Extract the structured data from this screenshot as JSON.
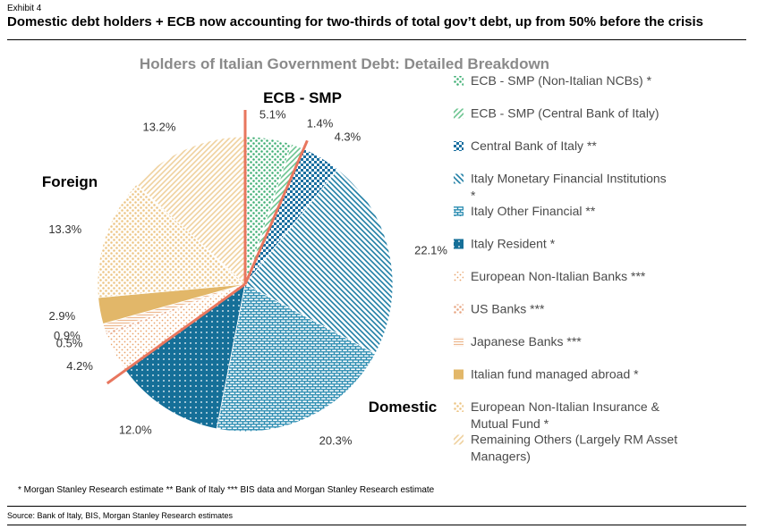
{
  "exhibit": "Exhibit 4",
  "headline": "Domestic debt holders + ECB now accounting for two-thirds of total gov’t debt, up from 50% before the crisis",
  "notes": "* Morgan Stanley Research estimate  ** Bank of Italy  *** BIS data and Morgan Stanley Research estimate",
  "source": "Source: Bank of Italy, BIS, Morgan Stanley Research estimates",
  "chart_data": {
    "type": "pie",
    "title": "Holders of Italian Government Debt: Detailed Breakdown",
    "groups": [
      {
        "label": "ECB - SMP",
        "color": "#1f9a55"
      },
      {
        "label": "Foreign",
        "color": "#e8765e"
      },
      {
        "label": "Domestic",
        "color": "#2e8ab8"
      }
    ],
    "slices": [
      {
        "name": "ECB - SMP (Non-Italian NCBs) *",
        "value": 5.1,
        "label": "5.1%",
        "color": "#3cae72",
        "pattern": "dots"
      },
      {
        "name": "ECB - SMP (Central Bank of Italy)",
        "value": 1.4,
        "label": "1.4%",
        "color": "#6cc490",
        "pattern": "fdiag"
      },
      {
        "name": "Central Bank of Italy **",
        "value": 4.3,
        "label": "4.3%",
        "color": "#1a6fa0",
        "pattern": "checks"
      },
      {
        "name": "Italy Monetary Financial Institutions *",
        "value": 22.1,
        "label": "22.1%",
        "color": "#1f7ea5",
        "pattern": "bdiag"
      },
      {
        "name": "Italy Other Financial **",
        "value": 20.3,
        "label": "20.3%",
        "color": "#2a8bb0",
        "pattern": "bricks"
      },
      {
        "name": "Italy Resident *",
        "value": 12.0,
        "label": "12.0%",
        "color": "#156f98",
        "pattern": "waves"
      },
      {
        "name": "European Non-Italian Banks ***",
        "value": 4.2,
        "label": "4.2%",
        "color": "#e9a26a",
        "pattern": "sparse"
      },
      {
        "name": "US Banks ***",
        "value": 0.5,
        "label": "0.5%",
        "color": "#e7a480",
        "pattern": "dots"
      },
      {
        "name": "Japanese Banks ***",
        "value": 0.9,
        "label": "0.9%",
        "color": "#eeb990",
        "pattern": "hlines"
      },
      {
        "name": "Italian fund managed abroad *",
        "value": 2.9,
        "label": "2.9%",
        "color": "#e2b769",
        "pattern": "solid"
      },
      {
        "name": "European Non-Italian Insurance & Mutual Fund *",
        "value": 13.3,
        "label": "13.3%",
        "color": "#ecc483",
        "pattern": "dots"
      },
      {
        "name": "Remaining Others (Largely RM Asset Managers)",
        "value": 13.2,
        "label": "13.2%",
        "color": "#efd19e",
        "pattern": "fdiag"
      }
    ]
  }
}
